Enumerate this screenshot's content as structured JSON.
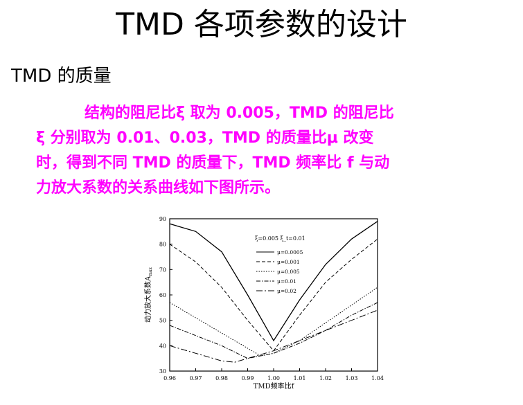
{
  "slide": {
    "title": "TMD 各项参数的设计",
    "heading": "TMD 的质量",
    "paragraph_lines": [
      "结构的阻尼比ξ 取为 0.005，TMD 的阻尼比",
      "ξ 分别取为 0.01、0.03，TMD 的质量比μ 改变",
      "时，得到不同 TMD 的质量下，TMD 频率比 f 与动",
      "力放大系数的关系曲线如下图所示。"
    ],
    "text_color": "#ff00ff"
  },
  "chart_data": {
    "type": "line",
    "xlabel": "TMD频率比f",
    "ylabel": "动力放大系数A",
    "ylabel_sub": "max",
    "xlim": [
      0.96,
      1.04
    ],
    "ylim": [
      30,
      90
    ],
    "xticks": [
      "0.96",
      "0.97",
      "0.98",
      "0.99",
      "1.00",
      "1.01",
      "1.02",
      "1.03",
      "1.04"
    ],
    "yticks": [
      "30",
      "40",
      "50",
      "60",
      "70",
      "80",
      "90"
    ],
    "annotation": "ξ=0.005   ξ_t=0.01",
    "legend_position": "upper-middle",
    "series": [
      {
        "name": "μ=0.0005",
        "dash": "solid",
        "x": [
          0.96,
          0.97,
          0.98,
          0.99,
          1.0,
          1.01,
          1.02,
          1.03,
          1.04
        ],
        "y": [
          88,
          85,
          77,
          60,
          42,
          58,
          72,
          82,
          89
        ]
      },
      {
        "name": "μ=0.001",
        "dash": "dashed",
        "x": [
          0.96,
          0.97,
          0.98,
          0.99,
          1.0,
          1.01,
          1.02,
          1.03,
          1.04
        ],
        "y": [
          80,
          73,
          63,
          50,
          38,
          52,
          65,
          74,
          82
        ]
      },
      {
        "name": "μ=0.005",
        "dash": "dotted",
        "x": [
          0.96,
          0.97,
          0.98,
          0.99,
          0.995,
          1.0,
          1.01,
          1.02,
          1.03,
          1.04
        ],
        "y": [
          57,
          51,
          45,
          39,
          36,
          37,
          42,
          49,
          56,
          63
        ]
      },
      {
        "name": "μ=0.01",
        "dash": "dashdot",
        "x": [
          0.96,
          0.97,
          0.98,
          0.99,
          1.0,
          1.01,
          1.02,
          1.03,
          1.04
        ],
        "y": [
          48,
          44,
          40,
          35,
          37,
          41,
          46,
          52,
          57
        ]
      },
      {
        "name": "μ=0.02",
        "dash": "longdash",
        "x": [
          0.96,
          0.97,
          0.98,
          0.985,
          0.99,
          1.0,
          1.01,
          1.02,
          1.03,
          1.04
        ],
        "y": [
          40,
          37,
          34,
          33.5,
          35,
          38,
          42,
          46,
          50,
          54
        ]
      }
    ]
  }
}
